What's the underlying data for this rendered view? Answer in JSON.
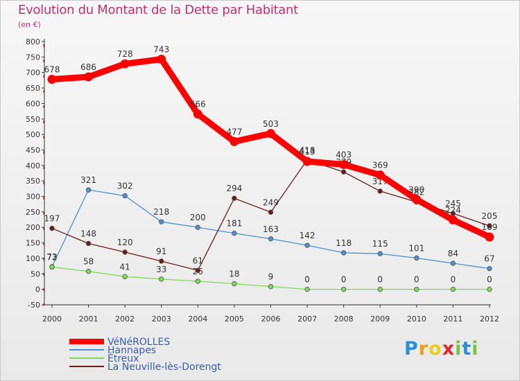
{
  "chart_data": {
    "type": "line",
    "title": "Evolution du Montant de la Dette par Habitant",
    "subtitle": "(en €)",
    "x": [
      2000,
      2001,
      2002,
      2003,
      2004,
      2005,
      2006,
      2007,
      2008,
      2009,
      2010,
      2011,
      2012
    ],
    "ylim": [
      -50,
      800
    ],
    "yticks": [
      -50,
      0,
      50,
      100,
      150,
      200,
      250,
      300,
      350,
      400,
      450,
      500,
      550,
      600,
      650,
      700,
      750,
      800
    ],
    "grid": false,
    "legend_position": "bottom-left",
    "series": [
      {
        "name": "VéNéROLLES",
        "color": "#ff0000",
        "values": [
          678,
          686,
          728,
          743,
          566,
          477,
          503,
          413,
          403,
          369,
          290,
          224,
          169
        ]
      },
      {
        "name": "Hannapes",
        "color": "#4d8fcf",
        "values": [
          73,
          321,
          302,
          218,
          200,
          181,
          163,
          142,
          118,
          115,
          101,
          84,
          67
        ]
      },
      {
        "name": "Étreux",
        "color": "#7ed957",
        "values": [
          72,
          58,
          41,
          33,
          26,
          18,
          9,
          0,
          0,
          0,
          0,
          0,
          0
        ]
      },
      {
        "name": "La Neuville-lès-Dorengt",
        "color": "#6b1a1a",
        "values": [
          197,
          148,
          120,
          91,
          61,
          294,
          249,
          418,
          379,
          317,
          282,
          245,
          205
        ]
      }
    ]
  },
  "logo": {
    "letters": [
      "P",
      "r",
      "o",
      "x",
      "i",
      "t",
      "i"
    ],
    "colors": [
      "#2a8fd6",
      "#f29a1c",
      "#e8cf20",
      "#e2262a",
      "#7cc242",
      "#2a8fd6",
      "#7cc242"
    ]
  }
}
